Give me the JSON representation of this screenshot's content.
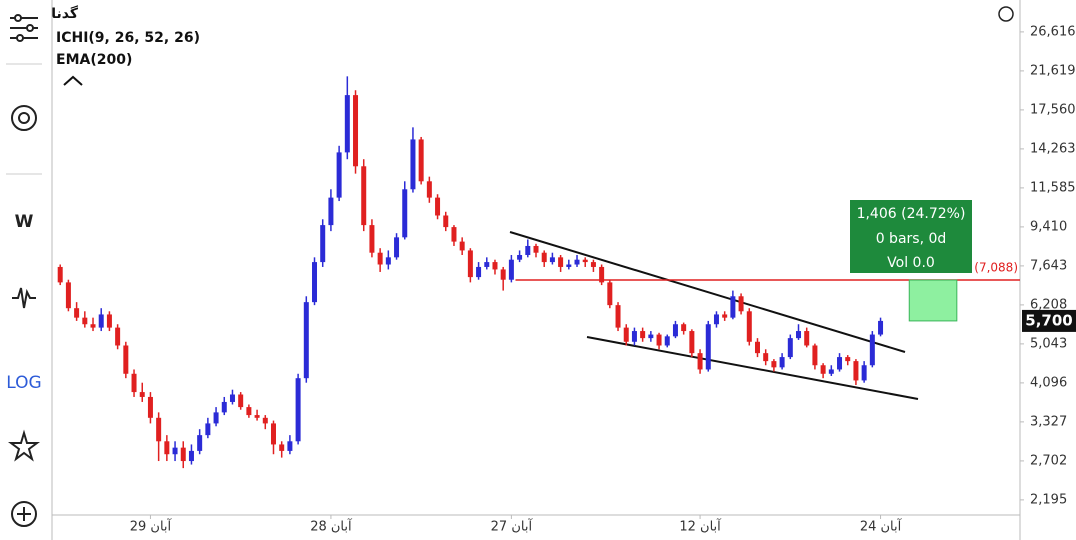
{
  "header": {
    "symbol": "گدنا",
    "indicators": [
      "ICHI(9, 26, 52, 26)",
      "EMA(200)"
    ]
  },
  "toolbar": {
    "interval": "W",
    "scale": "LOG"
  },
  "chart_data": {
    "type": "candlestick",
    "log_scale": true,
    "up_color": "#2b2bd6",
    "down_color": "#e02020",
    "xlim": [
      -1,
      117
    ],
    "ylim": [
      2025,
      31550
    ],
    "xticks": [
      {
        "value": 11,
        "label": "29 آبان"
      },
      {
        "value": 33,
        "label": "28 آبان"
      },
      {
        "value": 55,
        "label": "27 آبان"
      },
      {
        "value": 78,
        "label": "12 آبان"
      },
      {
        "value": 100,
        "label": "24 آبان"
      }
    ],
    "yticks": [
      {
        "value": 26616,
        "label": "26,616"
      },
      {
        "value": 21619,
        "label": "21,619"
      },
      {
        "value": 17560,
        "label": "17,560"
      },
      {
        "value": 14263,
        "label": "14,263"
      },
      {
        "value": 11585,
        "label": "11,585"
      },
      {
        "value": 9410,
        "label": "9,410"
      },
      {
        "value": 7643,
        "label": "7,643"
      },
      {
        "value": 6208,
        "label": "6,208"
      },
      {
        "value": 5043,
        "label": "5,043"
      },
      {
        "value": 4096,
        "label": "4,096"
      },
      {
        "value": 3327,
        "label": "3,327"
      },
      {
        "value": 2702,
        "label": "2,702"
      },
      {
        "value": 2195,
        "label": "2,195"
      }
    ],
    "last_price": {
      "value": 5700,
      "label": "5,700"
    },
    "hline": {
      "value": 7088,
      "label": "(7,088)"
    },
    "measure": [
      "1,406 (24.72%)",
      "0 bars, 0d",
      "Vol 0.0"
    ],
    "candles": [
      [
        7600,
        7700,
        6900,
        7000
      ],
      [
        7000,
        7100,
        6000,
        6100
      ],
      [
        6100,
        6300,
        5700,
        5800
      ],
      [
        5800,
        6000,
        5500,
        5600
      ],
      [
        5600,
        5800,
        5400,
        5500
      ],
      [
        5500,
        6100,
        5400,
        5900
      ],
      [
        5900,
        6000,
        5400,
        5500
      ],
      [
        5500,
        5600,
        4900,
        5000
      ],
      [
        5000,
        5100,
        4200,
        4300
      ],
      [
        4300,
        4400,
        3800,
        3900
      ],
      [
        3900,
        4100,
        3700,
        3800
      ],
      [
        3800,
        3900,
        3300,
        3400
      ],
      [
        3400,
        3500,
        2700,
        3000
      ],
      [
        3000,
        3100,
        2700,
        2800
      ],
      [
        2800,
        3000,
        2700,
        2900
      ],
      [
        2900,
        3000,
        2600,
        2700
      ],
      [
        2700,
        2950,
        2650,
        2850
      ],
      [
        2850,
        3200,
        2800,
        3100
      ],
      [
        3100,
        3400,
        3050,
        3300
      ],
      [
        3300,
        3600,
        3250,
        3500
      ],
      [
        3500,
        3800,
        3450,
        3700
      ],
      [
        3700,
        3950,
        3650,
        3850
      ],
      [
        3850,
        3900,
        3550,
        3600
      ],
      [
        3600,
        3650,
        3400,
        3450
      ],
      [
        3450,
        3550,
        3350,
        3400
      ],
      [
        3400,
        3450,
        3200,
        3300
      ],
      [
        3300,
        3350,
        2800,
        2950
      ],
      [
        2950,
        3000,
        2750,
        2850
      ],
      [
        2850,
        3100,
        2800,
        3000
      ],
      [
        3000,
        4300,
        2950,
        4200
      ],
      [
        4200,
        6500,
        4100,
        6300
      ],
      [
        6300,
        8000,
        6200,
        7800
      ],
      [
        7800,
        9800,
        7600,
        9500
      ],
      [
        9500,
        11500,
        9200,
        11000
      ],
      [
        11000,
        14500,
        10800,
        14000
      ],
      [
        14000,
        21000,
        13500,
        19000
      ],
      [
        19000,
        19500,
        12500,
        13000
      ],
      [
        13000,
        13500,
        9200,
        9500
      ],
      [
        9500,
        9800,
        8000,
        8200
      ],
      [
        8200,
        8400,
        7400,
        7700
      ],
      [
        7700,
        8300,
        7500,
        8000
      ],
      [
        8000,
        9100,
        7900,
        8900
      ],
      [
        8900,
        12000,
        8800,
        11500
      ],
      [
        11500,
        16000,
        11300,
        15000
      ],
      [
        15000,
        15200,
        11800,
        12000
      ],
      [
        12000,
        12300,
        10700,
        11000
      ],
      [
        11000,
        11200,
        9800,
        10000
      ],
      [
        10000,
        10200,
        9200,
        9400
      ],
      [
        9400,
        9500,
        8500,
        8700
      ],
      [
        8700,
        8900,
        8100,
        8300
      ],
      [
        8300,
        8400,
        7000,
        7200
      ],
      [
        7200,
        7800,
        7100,
        7600
      ],
      [
        7600,
        8000,
        7500,
        7800
      ],
      [
        7800,
        7900,
        7300,
        7500
      ],
      [
        7500,
        7600,
        6700,
        7100
      ],
      [
        7100,
        8100,
        7000,
        7900
      ],
      [
        7900,
        8300,
        7800,
        8100
      ],
      [
        8100,
        8800,
        8000,
        8500
      ],
      [
        8500,
        8600,
        8000,
        8200
      ],
      [
        8200,
        8300,
        7600,
        7800
      ],
      [
        7800,
        8200,
        7700,
        8000
      ],
      [
        8000,
        8100,
        7400,
        7600
      ],
      [
        7600,
        7900,
        7500,
        7700
      ],
      [
        7700,
        8100,
        7600,
        7900
      ],
      [
        7900,
        8000,
        7600,
        7800
      ],
      [
        7800,
        7900,
        7400,
        7600
      ],
      [
        7600,
        7700,
        6900,
        7000
      ],
      [
        7000,
        7100,
        6100,
        6200
      ],
      [
        6200,
        6300,
        5400,
        5500
      ],
      [
        5500,
        5600,
        5000,
        5100
      ],
      [
        5100,
        5500,
        5000,
        5400
      ],
      [
        5400,
        5500,
        5100,
        5200
      ],
      [
        5200,
        5400,
        5100,
        5300
      ],
      [
        5300,
        5350,
        4900,
        5000
      ],
      [
        5000,
        5300,
        4950,
        5250
      ],
      [
        5250,
        5700,
        5200,
        5600
      ],
      [
        5600,
        5650,
        5300,
        5400
      ],
      [
        5400,
        5450,
        4700,
        4800
      ],
      [
        4800,
        4900,
        4300,
        4400
      ],
      [
        4400,
        5700,
        4350,
        5600
      ],
      [
        5600,
        6000,
        5500,
        5900
      ],
      [
        5900,
        6000,
        5700,
        5800
      ],
      [
        5800,
        6700,
        5750,
        6500
      ],
      [
        6500,
        6600,
        5900,
        6000
      ],
      [
        6000,
        6100,
        5000,
        5100
      ],
      [
        5100,
        5200,
        4700,
        4800
      ],
      [
        4800,
        4900,
        4500,
        4600
      ],
      [
        4600,
        4650,
        4350,
        4450
      ],
      [
        4450,
        4800,
        4400,
        4700
      ],
      [
        4700,
        5300,
        4650,
        5200
      ],
      [
        5200,
        5600,
        5150,
        5400
      ],
      [
        5400,
        5500,
        4950,
        5000
      ],
      [
        5000,
        5050,
        4400,
        4500
      ],
      [
        4500,
        4550,
        4200,
        4300
      ],
      [
        4300,
        4500,
        4250,
        4400
      ],
      [
        4400,
        4800,
        4350,
        4700
      ],
      [
        4700,
        4750,
        4500,
        4600
      ],
      [
        4600,
        4650,
        4050,
        4150
      ],
      [
        4150,
        4600,
        4100,
        4500
      ],
      [
        4500,
        5400,
        4450,
        5300
      ],
      [
        5300,
        5800,
        5250,
        5700
      ]
    ]
  }
}
